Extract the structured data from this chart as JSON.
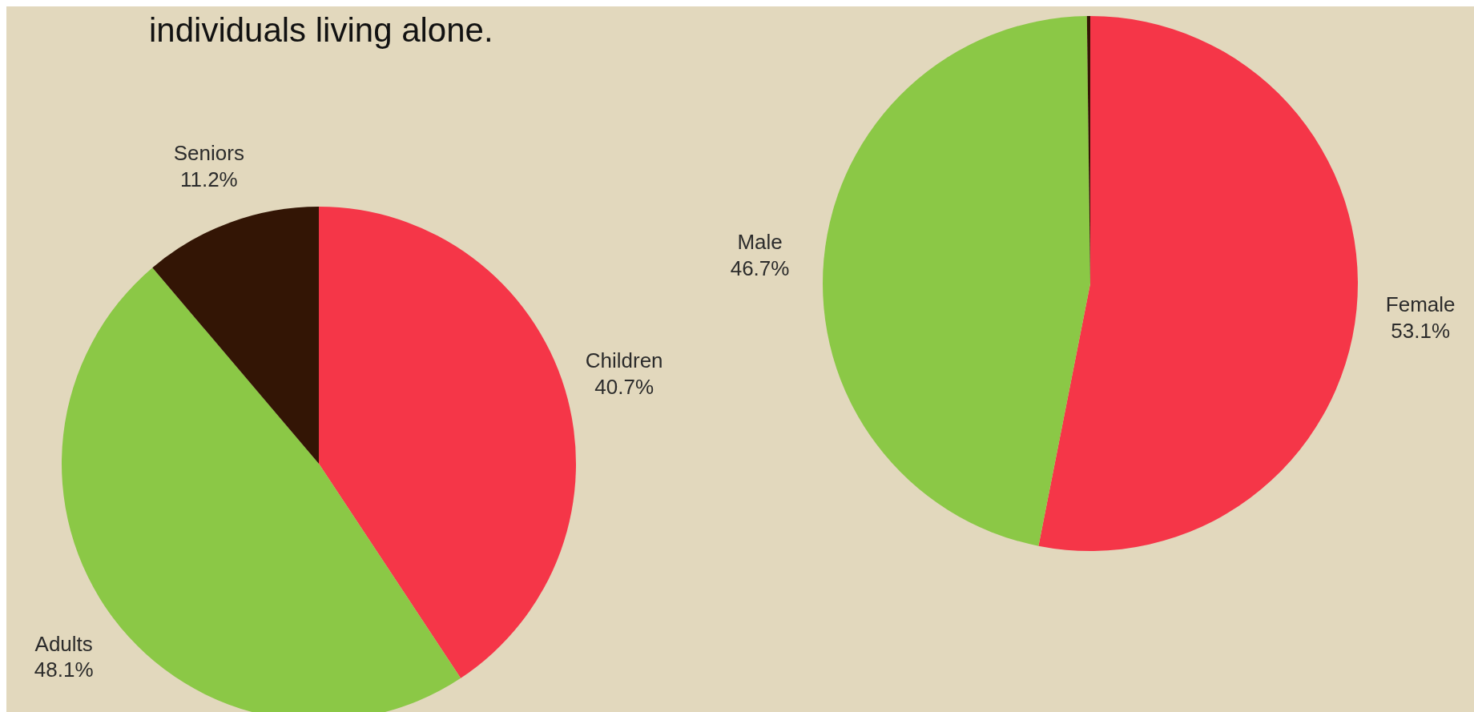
{
  "chart_data": [
    {
      "type": "pie",
      "title": "individuals living alone.",
      "categories": [
        "Children",
        "Adults",
        "Seniors"
      ],
      "values": [
        40.7,
        48.1,
        11.2
      ],
      "colors": [
        "#f53648",
        "#8bc846",
        "#331505"
      ],
      "value_labels": [
        "40.7%",
        "48.1%",
        "11.2%"
      ]
    },
    {
      "type": "pie",
      "categories": [
        "Female",
        "Male",
        null
      ],
      "values": [
        53.1,
        46.7,
        0.2
      ],
      "colors": [
        "#f53648",
        "#8bc846",
        "#331505"
      ],
      "value_labels": [
        "53.1%",
        "46.7%",
        null
      ]
    }
  ]
}
